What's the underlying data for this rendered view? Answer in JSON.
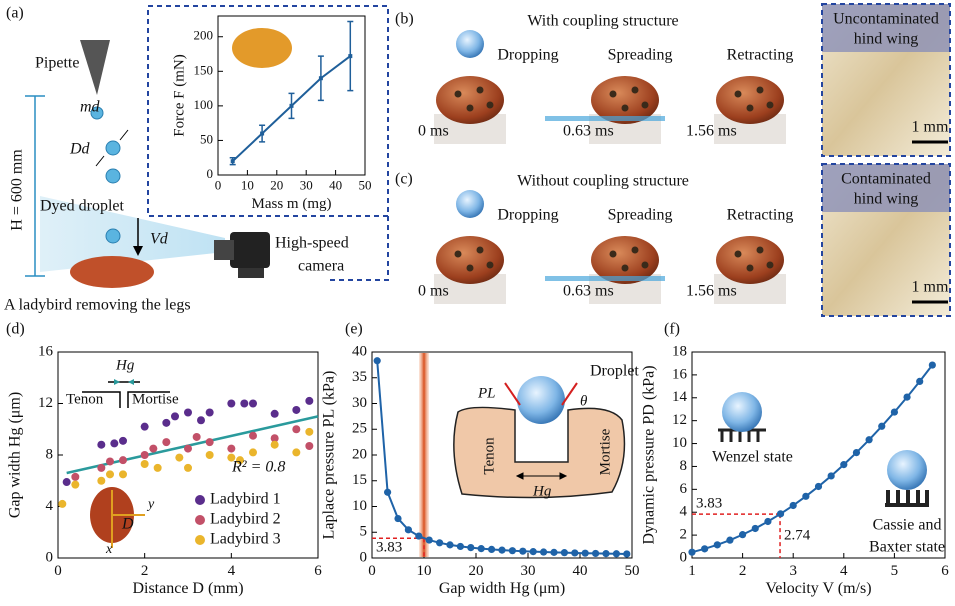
{
  "panels": {
    "a": {
      "label": "(a)",
      "pipette": "Pipette",
      "md": "md",
      "dd": "Dd",
      "height": "H = 600 mm",
      "droplet": "Dyed droplet",
      "vd": "Vd",
      "camera": [
        "High-speed",
        "camera"
      ],
      "caption": "A ladybird removing the legs"
    },
    "b": {
      "label": "(b)",
      "title": "With coupling structure",
      "stages": [
        "Dropping",
        "Spreading",
        "Retracting"
      ],
      "times": [
        "0 ms",
        "0.63 ms",
        "1.56 ms"
      ],
      "wing": [
        "Uncontaminated",
        "hind wing"
      ],
      "scale": "1 mm"
    },
    "c": {
      "label": "(c)",
      "title": "Without coupling structure",
      "stages": [
        "Dropping",
        "Spreading",
        "Retracting"
      ],
      "times": [
        "0 ms",
        "0.63 ms",
        "1.56 ms"
      ],
      "wing": [
        "Contaminated",
        "hind wing"
      ],
      "scale": "1 mm"
    },
    "d": {
      "label": "(d)",
      "hg": "Hg",
      "tenon": "Tenon",
      "mortise": "Mortise",
      "r2": "R² = 0.8",
      "d": "D",
      "x": "x",
      "y": "y"
    },
    "e": {
      "label": "(e)",
      "droplet": "Droplet",
      "pl": "PL",
      "theta": "θ",
      "tenon": "Tenon",
      "mortise": "Mortise",
      "hg": "Hg"
    },
    "f": {
      "label": "(f)",
      "wenzel": "Wenzel state",
      "cassie": [
        "Cassie and",
        "Baxter state"
      ]
    }
  },
  "chart_data": [
    {
      "type": "line",
      "xlabel": "Mass m (mg)",
      "ylabel": "Force F (mN)",
      "x": [
        5,
        15,
        25,
        35,
        45
      ],
      "series": [
        {
          "color": "#1f5f9a",
          "values": [
            20,
            60,
            100,
            140,
            172
          ],
          "errors": [
            5,
            12,
            18,
            32,
            50
          ]
        }
      ],
      "xlim": [
        0,
        50
      ],
      "xticks": [
        0,
        10,
        20,
        30,
        40,
        50
      ],
      "ylim": [
        0,
        230
      ],
      "yticks": [
        0,
        50,
        100,
        150,
        200
      ]
    },
    {
      "type": "scatter",
      "xlabel": "Distance D (mm)",
      "ylabel": "Gap width Hg (μm)",
      "series": [
        {
          "name": "Ladybird 1",
          "color": "#5a2d8c",
          "x": [
            0.2,
            1.0,
            1.3,
            1.5,
            2.0,
            2.5,
            2.7,
            3.0,
            3.3,
            3.5,
            4.0,
            4.3,
            4.5,
            5.0,
            5.5,
            5.8
          ],
          "values": [
            5.9,
            8.8,
            8.9,
            9.1,
            10.2,
            10.5,
            11.0,
            11.3,
            10.7,
            11.3,
            12.0,
            12.0,
            12.0,
            11.2,
            11.5,
            12.2
          ]
        },
        {
          "name": "Ladybird 2",
          "color": "#c25068",
          "x": [
            0.4,
            1.0,
            1.2,
            1.5,
            2.0,
            2.2,
            2.5,
            3.0,
            3.2,
            3.5,
            4.0,
            4.5,
            5.0,
            5.5,
            5.8
          ],
          "values": [
            6.3,
            7.0,
            7.5,
            7.6,
            8.0,
            8.5,
            9.0,
            8.5,
            9.4,
            9.0,
            8.5,
            9.5,
            9.3,
            10.0,
            8.7
          ]
        },
        {
          "name": "Ladybird 3",
          "color": "#eab52c",
          "x": [
            0.1,
            0.4,
            1.0,
            1.2,
            1.5,
            2.0,
            2.3,
            2.8,
            3.0,
            3.5,
            4.0,
            4.2,
            4.5,
            5.0,
            5.5,
            5.8
          ],
          "values": [
            4.2,
            5.7,
            6.0,
            6.5,
            6.5,
            7.3,
            7.0,
            7.8,
            7.0,
            8.0,
            7.8,
            7.6,
            8.2,
            8.8,
            8.2,
            9.8
          ]
        }
      ],
      "fit": {
        "color": "#2a9a9c",
        "x": [
          0.2,
          6
        ],
        "values": [
          6.6,
          11
        ]
      },
      "xlim": [
        0,
        6
      ],
      "xticks": [
        0,
        2,
        4,
        6
      ],
      "ylim": [
        0,
        16
      ],
      "yticks": [
        0,
        4,
        8,
        12,
        16
      ]
    },
    {
      "type": "line",
      "xlabel": "Gap width Hg (μm)",
      "ylabel": "Laplace pressure PL (kPa)",
      "x": [
        1,
        3,
        5,
        7,
        9,
        11,
        13,
        15,
        17,
        19,
        21,
        23,
        25,
        27,
        29,
        31,
        33,
        35,
        37,
        39,
        41,
        43,
        45,
        47,
        49
      ],
      "series": [
        {
          "color": "#1f63a8",
          "values": [
            38.3,
            12.77,
            7.66,
            5.47,
            4.26,
            3.48,
            2.95,
            2.55,
            2.25,
            2.02,
            1.82,
            1.67,
            1.53,
            1.42,
            1.32,
            1.24,
            1.16,
            1.09,
            1.04,
            0.98,
            0.93,
            0.89,
            0.85,
            0.82,
            0.78
          ]
        }
      ],
      "marker": {
        "x": 10,
        "y": 3.83
      },
      "xlim": [
        0,
        50
      ],
      "xticks": [
        0,
        10,
        20,
        30,
        40,
        50
      ],
      "ylim": [
        0,
        40
      ],
      "yticks": [
        0,
        5,
        10,
        15,
        20,
        25,
        30,
        35,
        40
      ]
    },
    {
      "type": "line",
      "xlabel": "Velocity V (m/s)",
      "ylabel": "Dynamic pressure PD (kPa)",
      "x": [
        1,
        1.25,
        1.5,
        1.75,
        2,
        2.25,
        2.5,
        2.75,
        3,
        3.25,
        3.5,
        3.75,
        4,
        4.25,
        4.5,
        4.75,
        5,
        5.25,
        5.5,
        5.75
      ],
      "series": [
        {
          "color": "#1f63a8",
          "values": [
            0.51,
            0.8,
            1.15,
            1.56,
            2.04,
            2.58,
            3.19,
            3.86,
            4.59,
            5.39,
            6.25,
            7.17,
            8.16,
            9.21,
            10.33,
            11.51,
            12.75,
            14.06,
            15.43,
            16.86
          ]
        }
      ],
      "marker": {
        "x": 2.74,
        "y": 3.83
      },
      "xlim": [
        1,
        6
      ],
      "xticks": [
        1,
        2,
        3,
        4,
        5,
        6
      ],
      "ylim": [
        0,
        18
      ],
      "yticks": [
        0,
        2,
        4,
        6,
        8,
        10,
        12,
        14,
        16,
        18
      ]
    }
  ]
}
